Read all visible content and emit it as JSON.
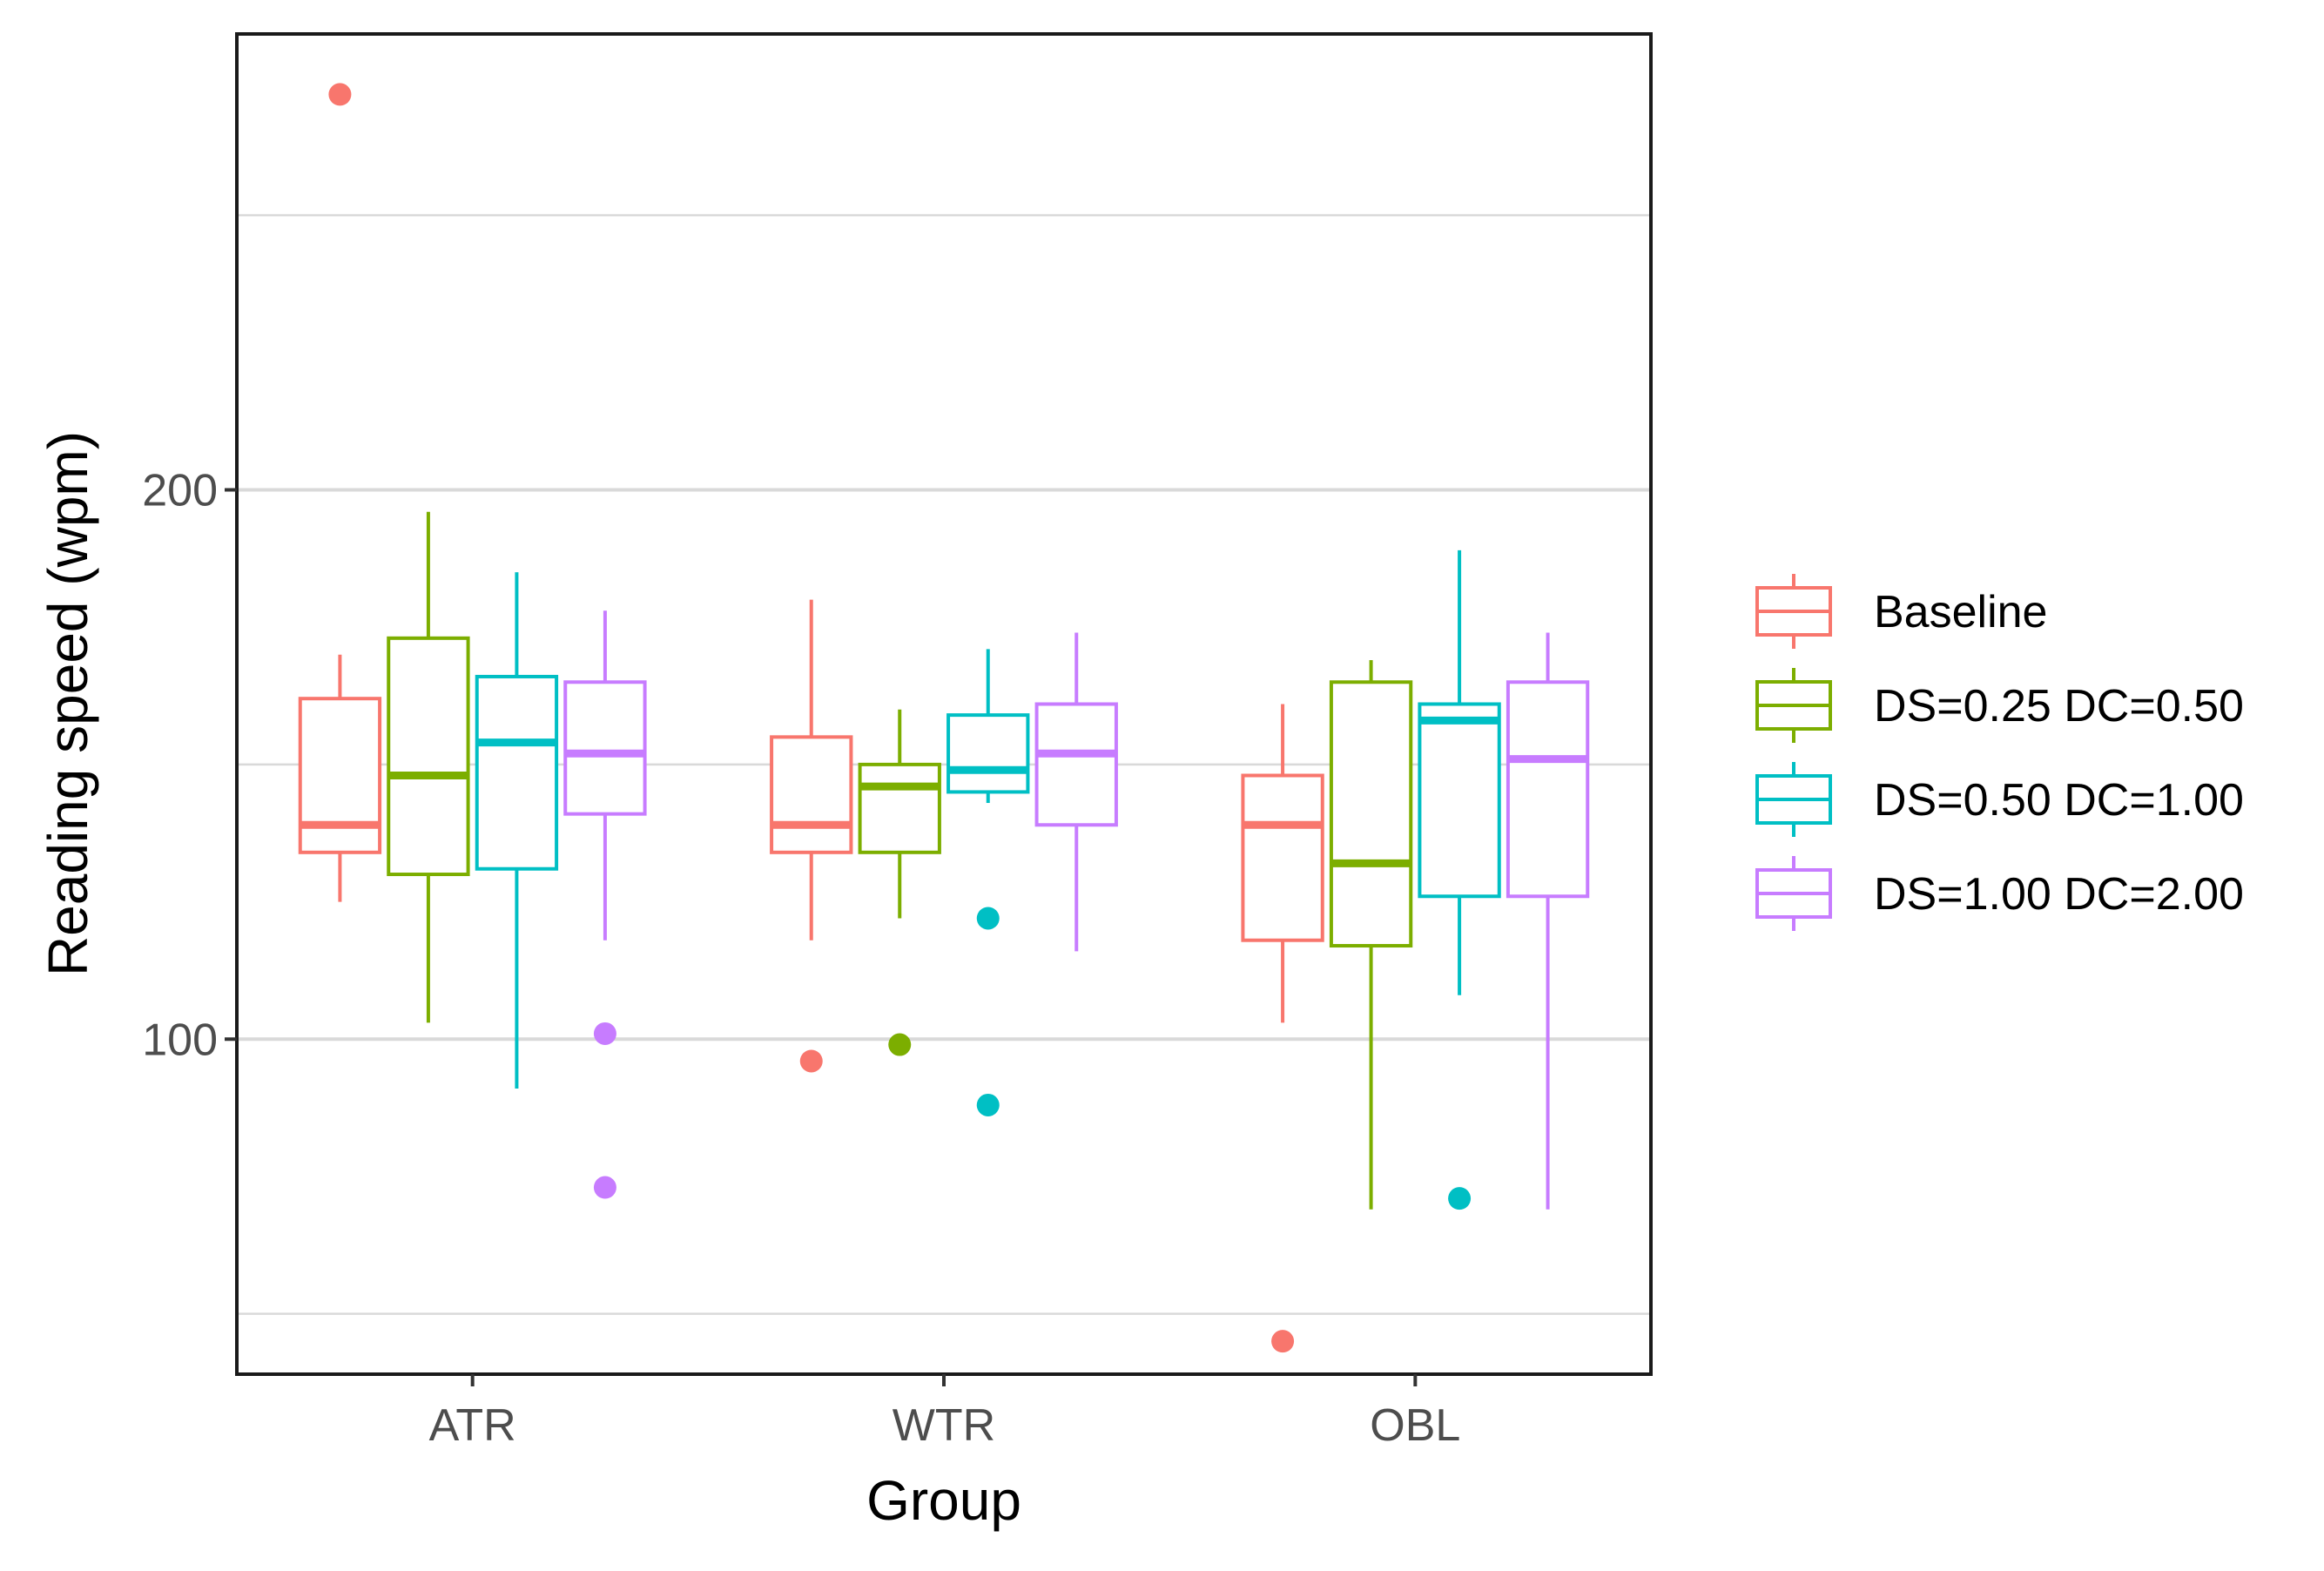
{
  "chart_data": {
    "type": "boxplot",
    "xlabel": "Group",
    "ylabel": "Reading speed (wpm)",
    "ylim": [
      39,
      283
    ],
    "y_ticks": [
      100,
      200
    ],
    "y_gridlines": [
      50,
      100,
      150,
      200,
      250
    ],
    "grid": "horizontal",
    "legend_position": "right",
    "categories": [
      "ATR",
      "WTR",
      "OBL"
    ],
    "series": [
      {
        "name": "Baseline",
        "color": "#F8766D",
        "boxes": [
          {
            "whisker_low": 125,
            "q1": 134,
            "median": 139,
            "q3": 162,
            "whisker_high": 170,
            "outliers": [
              272
            ]
          },
          {
            "whisker_low": 118,
            "q1": 134,
            "median": 139,
            "q3": 155,
            "whisker_high": 180,
            "outliers": [
              96
            ]
          },
          {
            "whisker_low": 103,
            "q1": 118,
            "median": 139,
            "q3": 148,
            "whisker_high": 161,
            "outliers": [
              45
            ]
          }
        ]
      },
      {
        "name": "DS=0.25 DC=0.50",
        "color": "#7CAE00",
        "boxes": [
          {
            "whisker_low": 103,
            "q1": 130,
            "median": 148,
            "q3": 173,
            "whisker_high": 196,
            "outliers": []
          },
          {
            "whisker_low": 122,
            "q1": 134,
            "median": 146,
            "q3": 150,
            "whisker_high": 160,
            "outliers": [
              99
            ]
          },
          {
            "whisker_low": 69,
            "q1": 117,
            "median": 132,
            "q3": 165,
            "whisker_high": 169,
            "outliers": []
          }
        ]
      },
      {
        "name": "DS=0.50 DC=1.00",
        "color": "#00BFC4",
        "boxes": [
          {
            "whisker_low": 91,
            "q1": 131,
            "median": 154,
            "q3": 166,
            "whisker_high": 185,
            "outliers": []
          },
          {
            "whisker_low": 143,
            "q1": 145,
            "median": 149,
            "q3": 159,
            "whisker_high": 171,
            "outliers": [
              122,
              88
            ]
          },
          {
            "whisker_low": 108,
            "q1": 126,
            "median": 158,
            "q3": 161,
            "whisker_high": 189,
            "outliers": [
              71
            ]
          }
        ]
      },
      {
        "name": "DS=1.00 DC=2.00",
        "color": "#C77CFF",
        "boxes": [
          {
            "whisker_low": 118,
            "q1": 141,
            "median": 152,
            "q3": 165,
            "whisker_high": 178,
            "outliers": [
              101,
              73
            ]
          },
          {
            "whisker_low": 116,
            "q1": 139,
            "median": 152,
            "q3": 161,
            "whisker_high": 174,
            "outliers": []
          },
          {
            "whisker_low": 69,
            "q1": 126,
            "median": 151,
            "q3": 165,
            "whisker_high": 174,
            "outliers": []
          }
        ]
      }
    ]
  }
}
